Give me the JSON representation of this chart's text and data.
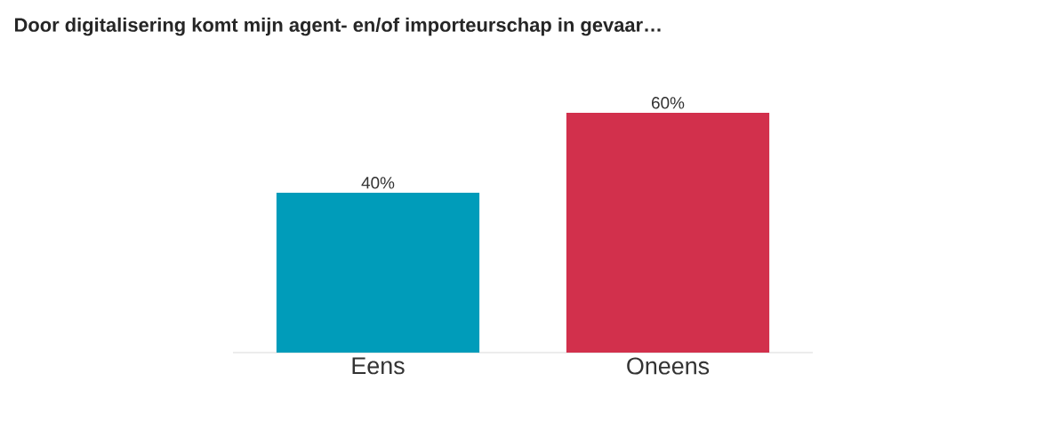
{
  "chart_data": {
    "type": "bar",
    "title": "Door digitalisering komt mijn agent- en/of importeurschap in gevaar…",
    "categories": [
      "Eens",
      "Oneens"
    ],
    "values": [
      40,
      60
    ],
    "value_labels": [
      "40%",
      "60%"
    ],
    "colors": [
      "#009cba",
      "#d2304c"
    ]
  }
}
